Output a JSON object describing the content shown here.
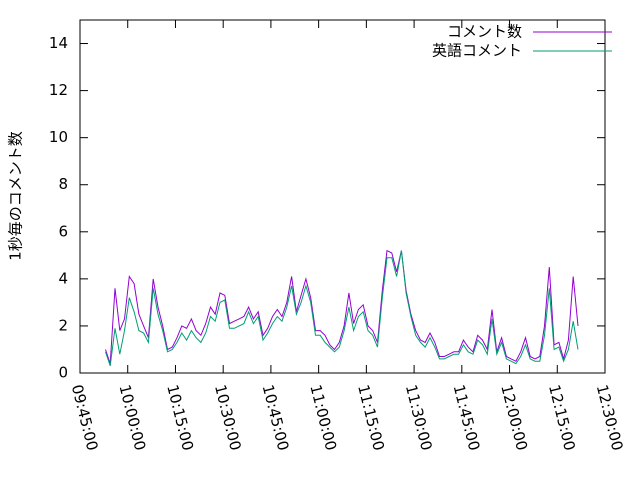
{
  "chart_data": {
    "type": "line",
    "ylabel": "1秒毎のコメント数",
    "x": [
      "09:53:00",
      "09:54:30",
      "09:56:00",
      "09:57:30",
      "09:59:00",
      "10:00:30",
      "10:02:00",
      "10:03:30",
      "10:05:00",
      "10:06:30",
      "10:08:00",
      "10:09:30",
      "10:11:00",
      "10:12:30",
      "10:14:00",
      "10:15:30",
      "10:17:00",
      "10:18:30",
      "10:20:00",
      "10:21:30",
      "10:23:00",
      "10:24:30",
      "10:26:00",
      "10:27:30",
      "10:29:00",
      "10:30:30",
      "10:32:00",
      "10:33:30",
      "10:35:00",
      "10:36:30",
      "10:38:00",
      "10:39:30",
      "10:41:00",
      "10:42:30",
      "10:44:00",
      "10:45:30",
      "10:47:00",
      "10:48:30",
      "10:50:00",
      "10:51:30",
      "10:53:00",
      "10:54:30",
      "10:56:00",
      "10:57:30",
      "10:59:00",
      "11:00:30",
      "11:02:00",
      "11:03:30",
      "11:05:00",
      "11:06:30",
      "11:08:00",
      "11:09:30",
      "11:11:00",
      "11:12:30",
      "11:14:00",
      "11:15:30",
      "11:17:00",
      "11:18:30",
      "11:20:00",
      "11:21:30",
      "11:23:00",
      "11:24:30",
      "11:26:00",
      "11:27:30",
      "11:29:00",
      "11:30:30",
      "11:32:00",
      "11:33:30",
      "11:35:00",
      "11:36:30",
      "11:38:00",
      "11:39:30",
      "11:41:00",
      "11:42:30",
      "11:44:00",
      "11:45:30",
      "11:47:00",
      "11:48:30",
      "11:50:00",
      "11:51:30",
      "11:53:00",
      "11:54:30",
      "11:56:00",
      "11:57:30",
      "11:59:00",
      "12:00:30",
      "12:02:00",
      "12:03:30",
      "12:05:00",
      "12:06:30",
      "12:08:00",
      "12:09:30",
      "12:11:00",
      "12:12:30",
      "12:14:00",
      "12:15:30",
      "12:17:00",
      "12:18:30",
      "12:20:00",
      "12:21:30"
    ],
    "series": [
      {
        "name": "コメント数",
        "color": "#9400d3",
        "values": [
          1.0,
          0.4,
          3.6,
          1.8,
          2.3,
          4.1,
          3.8,
          2.5,
          2.0,
          1.5,
          4.0,
          2.8,
          2.0,
          1.0,
          1.1,
          1.5,
          2.0,
          1.9,
          2.3,
          1.8,
          1.6,
          2.1,
          2.8,
          2.5,
          3.4,
          3.3,
          2.1,
          2.2,
          2.3,
          2.4,
          2.8,
          2.3,
          2.6,
          1.6,
          1.9,
          2.4,
          2.7,
          2.4,
          3.0,
          4.1,
          2.6,
          3.3,
          4.0,
          3.2,
          1.8,
          1.8,
          1.6,
          1.2,
          1.0,
          1.3,
          2.0,
          3.4,
          2.1,
          2.7,
          2.9,
          2.0,
          1.8,
          1.3,
          3.5,
          5.2,
          5.1,
          4.3,
          5.2,
          3.5,
          2.5,
          1.8,
          1.4,
          1.3,
          1.7,
          1.3,
          0.7,
          0.7,
          0.8,
          0.9,
          0.9,
          1.4,
          1.1,
          0.9,
          1.6,
          1.4,
          1.0,
          2.7,
          0.9,
          1.5,
          0.7,
          0.6,
          0.5,
          0.9,
          1.5,
          0.7,
          0.6,
          0.7,
          2.0,
          4.5,
          1.2,
          1.3,
          0.6,
          1.4,
          4.1,
          2.0
        ]
      },
      {
        "name": "英語コメント",
        "color": "#009e73",
        "values": [
          0.9,
          0.3,
          1.9,
          0.8,
          1.8,
          3.2,
          2.6,
          1.8,
          1.7,
          1.3,
          3.6,
          2.5,
          1.8,
          0.9,
          1.0,
          1.3,
          1.7,
          1.4,
          1.8,
          1.5,
          1.3,
          1.7,
          2.4,
          2.2,
          3.0,
          3.1,
          1.9,
          1.9,
          2.0,
          2.1,
          2.6,
          2.1,
          2.4,
          1.4,
          1.7,
          2.1,
          2.4,
          2.2,
          2.8,
          3.7,
          2.5,
          3.0,
          3.7,
          3.0,
          1.6,
          1.6,
          1.3,
          1.1,
          0.9,
          1.1,
          1.8,
          2.8,
          1.8,
          2.4,
          2.6,
          1.8,
          1.6,
          1.1,
          3.2,
          4.9,
          4.9,
          4.1,
          5.2,
          3.4,
          2.4,
          1.6,
          1.3,
          1.1,
          1.5,
          1.1,
          0.6,
          0.6,
          0.7,
          0.8,
          0.8,
          1.2,
          0.9,
          0.8,
          1.4,
          1.2,
          0.8,
          2.3,
          0.8,
          1.3,
          0.6,
          0.5,
          0.4,
          0.7,
          1.2,
          0.6,
          0.5,
          0.5,
          1.6,
          3.6,
          1.0,
          1.1,
          0.5,
          1.0,
          2.2,
          1.0
        ]
      }
    ],
    "xlim": [
      "09:45:00",
      "12:30:00"
    ],
    "xticks": [
      "09:45:00",
      "10:00:00",
      "10:15:00",
      "10:30:00",
      "10:45:00",
      "11:00:00",
      "11:15:00",
      "11:30:00",
      "11:45:00",
      "12:00:00",
      "12:15:00",
      "12:30:00"
    ],
    "ylim": [
      0,
      15
    ],
    "yticks": [
      0,
      2,
      4,
      6,
      8,
      10,
      12,
      14
    ],
    "legend": "top-right"
  }
}
